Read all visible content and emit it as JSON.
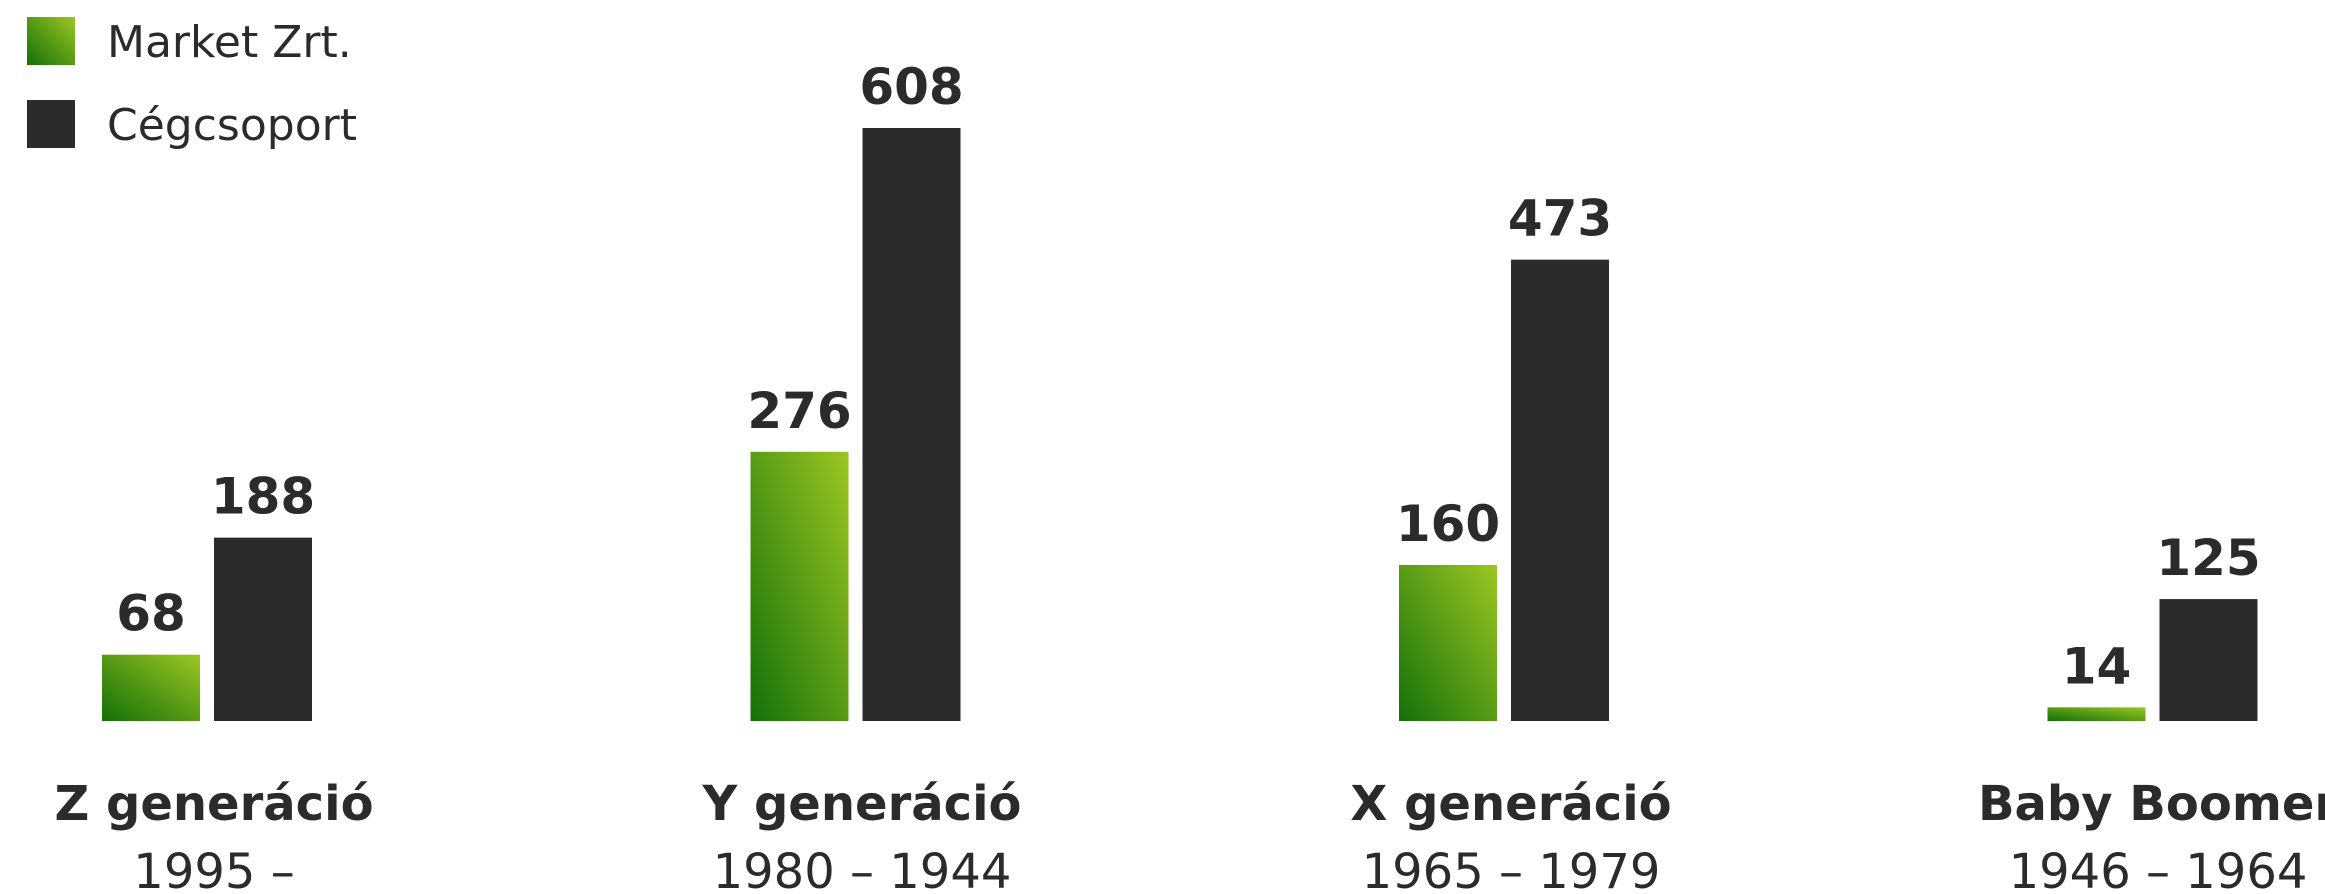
{
  "chart_data": {
    "type": "bar",
    "categories": [
      "Z generáció",
      "Y generáció",
      "X generáció",
      "Baby Boomer"
    ],
    "category_subtitles": [
      "1995 –",
      "1980 – 1944",
      "1965 – 1979",
      "1946 – 1964"
    ],
    "series": [
      {
        "name": "Market Zrt.",
        "values": [
          68,
          276,
          160,
          14
        ],
        "color": "#4a9a1a"
      },
      {
        "name": "Cégcsoport",
        "values": [
          188,
          608,
          473,
          125
        ],
        "color": "#2b2b2b"
      }
    ],
    "ylim": [
      0,
      608
    ],
    "grid": false,
    "legend_position": "top-left"
  }
}
